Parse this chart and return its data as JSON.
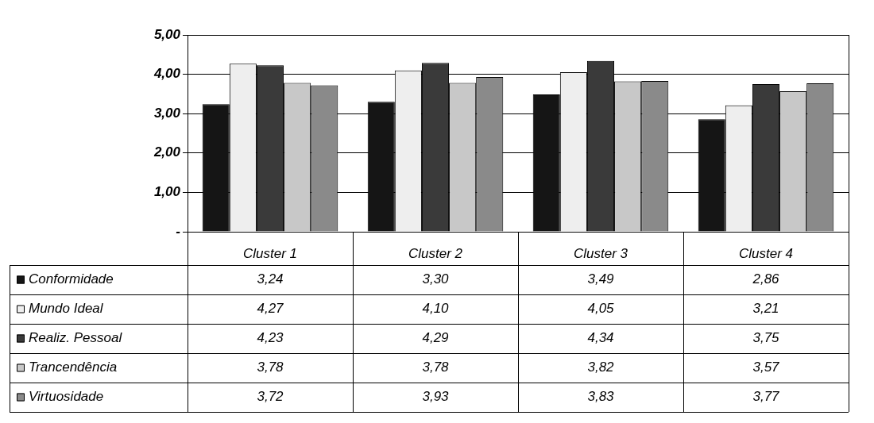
{
  "chart_data": {
    "type": "bar",
    "categories": [
      "Cluster 1",
      "Cluster 2",
      "Cluster 3",
      "Cluster 4"
    ],
    "series": [
      {
        "name": "Conformidade",
        "color": "#151515",
        "values": [
          3.24,
          3.3,
          3.49,
          2.86
        ],
        "value_labels": [
          "3,24",
          "3,30",
          "3,49",
          "2,86"
        ]
      },
      {
        "name": "Mundo Ideal",
        "color": "#eeeeee",
        "values": [
          4.27,
          4.1,
          4.05,
          3.21
        ],
        "value_labels": [
          "4,27",
          "4,10",
          "4,05",
          "3,21"
        ]
      },
      {
        "name": "Realiz. Pessoal",
        "color": "#3a3a3a",
        "values": [
          4.23,
          4.29,
          4.34,
          3.75
        ],
        "value_labels": [
          "4,23",
          "4,29",
          "4,34",
          "3,75"
        ]
      },
      {
        "name": "Trancendência",
        "color": "#c8c8c8",
        "values": [
          3.78,
          3.78,
          3.82,
          3.57
        ],
        "value_labels": [
          "3,78",
          "3,78",
          "3,82",
          "3,57"
        ]
      },
      {
        "name": "Virtuosidade",
        "color": "#8a8a8a",
        "values": [
          3.72,
          3.93,
          3.83,
          3.77
        ],
        "value_labels": [
          "3,72",
          "3,93",
          "3,83",
          "3,77"
        ]
      }
    ],
    "ylim": [
      0,
      5
    ],
    "yticks": [
      {
        "value": 0,
        "label": "-"
      },
      {
        "value": 1,
        "label": "1,00"
      },
      {
        "value": 2,
        "label": "2,00"
      },
      {
        "value": 3,
        "label": "3,00"
      },
      {
        "value": 4,
        "label": "4,00"
      },
      {
        "value": 5,
        "label": "5,00"
      }
    ],
    "grid": "y",
    "legend": "bottom"
  }
}
